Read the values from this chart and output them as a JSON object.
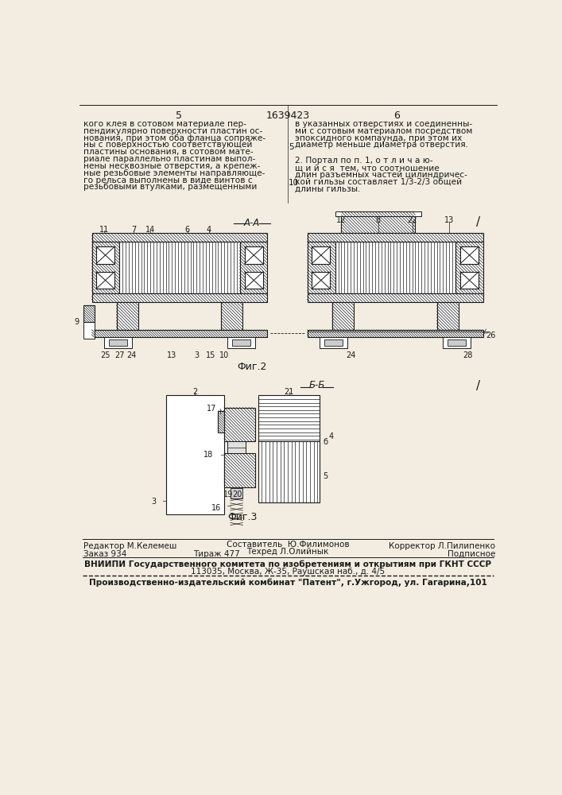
{
  "page_color": "#f2ede0",
  "patent_number": "1639423",
  "page_left": "5",
  "page_right": "6",
  "text_left": "кого клея в сотовом материале пер-\nпендикулярно поверхности пластин ос-\nнования, при этом оба фланца сопряже-\nны с поверхностью соответствующей\nпластины основания, в сотовом мате-\nриале параллельно пластинам выпол-\nнены несквозные отверстия, а крепеж-\nные резьбовые элементы направляюще-\nго рельса выполнены в виде винтов с\nрезьбовыми втулками, размещенными",
  "text_right_1": "в указанных отверстиях и соединенны-\nми с сотовым материалом посредством\nэпоксидного компаунда, при этом их\nдиаметр меньше диаметра отверстия.",
  "text_right_2": "2. Портал по п. 1, о т л и ч а ю-\nщ и й с я  тем, что соотношение\nдлин разъемных частей цилиндричес-\nкой гильзы составляет 1/3-2/3 общей\nдлины гильзы.",
  "line_num_5": "5",
  "line_num_10": "10",
  "fig2_label": "Фиг.2",
  "fig3_label": "Фиг.3",
  "section_aa": "А-А",
  "section_bb": "Б-Б",
  "footer_editor": "Редактор М.Келемеш",
  "footer_composer": "Составитель  Ю.Филимонов",
  "footer_tech": "Техред Л.Олийнык",
  "footer_corrector": "Корректор Л.Пилипенко",
  "footer_order": "Заказ 934",
  "footer_tirazh": "Тираж 477",
  "footer_podpis": "Подписное",
  "footer_vniiipi": "ВНИИПИ Государственного комитета по изобретениям и открытиям при ГКНТ СССР",
  "footer_address": "113035, Москва, Ж-35, Раушская наб., д. 4/5",
  "footer_plant": "Производственно-издательский комбинат \"Патент\", г.Ужгород, ул. Гагарина,101",
  "tc": "#1a1a1a",
  "lc": "#1a1a1a"
}
